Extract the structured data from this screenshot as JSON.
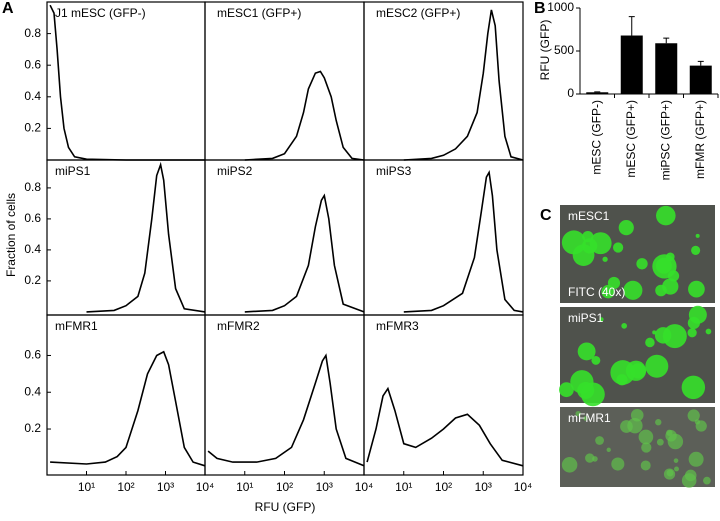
{
  "panel_labels": [
    "A",
    "B",
    "C"
  ],
  "panel_a": {
    "xlabel": "RFU (GFP)",
    "ylabel": "Fraction of cells"
  },
  "panel_c": {
    "images": [
      {
        "label": "mESC1",
        "note": "FITC (40x)"
      },
      {
        "label": "miPS1"
      },
      {
        "label": "mFMR1"
      }
    ]
  },
  "chart_data": [
    {
      "type": "line",
      "title": "J1 mESC (GFP-)",
      "xscale": "log",
      "xlim": [
        1,
        10000
      ],
      "ylim": [
        0,
        1
      ],
      "yticks": [
        0.2,
        0.4,
        0.6,
        0.8
      ],
      "color": "#000000",
      "x": [
        1.2,
        1.5,
        1.8,
        2.2,
        2.7,
        3.5,
        5,
        10,
        100,
        1000,
        10000
      ],
      "values": [
        0.98,
        0.93,
        0.7,
        0.4,
        0.2,
        0.08,
        0.02,
        0.005,
        0,
        0,
        0
      ]
    },
    {
      "type": "line",
      "title": "mESC1 (GFP+)",
      "xscale": "log",
      "xlim": [
        1,
        10000
      ],
      "ylim": [
        0,
        1
      ],
      "color": "#000000",
      "x": [
        10,
        50,
        100,
        200,
        300,
        400,
        600,
        800,
        1000,
        1500,
        2000,
        3000,
        5000,
        10000
      ],
      "values": [
        0,
        0.01,
        0.04,
        0.15,
        0.3,
        0.45,
        0.55,
        0.56,
        0.52,
        0.4,
        0.25,
        0.08,
        0.01,
        0
      ]
    },
    {
      "type": "line",
      "title": "mESC2 (GFP+)",
      "xscale": "log",
      "xlim": [
        1,
        10000
      ],
      "ylim": [
        0,
        1
      ],
      "color": "#000000",
      "x": [
        10,
        50,
        100,
        200,
        400,
        700,
        1000,
        1300,
        1600,
        2000,
        2500,
        3500,
        5000,
        10000
      ],
      "values": [
        0,
        0.01,
        0.03,
        0.07,
        0.15,
        0.3,
        0.55,
        0.8,
        0.95,
        0.85,
        0.5,
        0.15,
        0.02,
        0
      ]
    },
    {
      "type": "line",
      "title": "miPS1",
      "xscale": "log",
      "xlim": [
        1,
        10000
      ],
      "ylim": [
        -0.02,
        0.98
      ],
      "yticks": [
        0.2,
        0.4,
        0.6,
        0.8
      ],
      "color": "#000000",
      "x": [
        10,
        50,
        100,
        200,
        300,
        450,
        600,
        750,
        900,
        1200,
        1800,
        3000,
        10000
      ],
      "values": [
        0,
        0.01,
        0.04,
        0.1,
        0.25,
        0.6,
        0.88,
        0.95,
        0.85,
        0.5,
        0.15,
        0.02,
        0
      ]
    },
    {
      "type": "line",
      "title": "miPS2",
      "xscale": "log",
      "xlim": [
        1,
        10000
      ],
      "ylim": [
        -0.02,
        0.98
      ],
      "color": "#000000",
      "x": [
        10,
        50,
        100,
        200,
        400,
        600,
        850,
        1000,
        1300,
        1800,
        3000,
        10000
      ],
      "values": [
        0,
        0.01,
        0.04,
        0.1,
        0.3,
        0.55,
        0.72,
        0.75,
        0.6,
        0.3,
        0.05,
        0
      ]
    },
    {
      "type": "line",
      "title": "miPS3",
      "xscale": "log",
      "xlim": [
        1,
        10000
      ],
      "ylim": [
        -0.02,
        0.98
      ],
      "color": "#000000",
      "x": [
        10,
        50,
        100,
        300,
        600,
        900,
        1200,
        1400,
        1700,
        2200,
        3500,
        6000,
        10000
      ],
      "values": [
        0,
        0.01,
        0.04,
        0.12,
        0.35,
        0.65,
        0.87,
        0.9,
        0.75,
        0.4,
        0.08,
        0.01,
        0
      ]
    },
    {
      "type": "line",
      "title": "mFMR1",
      "xscale": "log",
      "xlim": [
        1,
        10000
      ],
      "ylim": [
        -0.05,
        0.82
      ],
      "yticks": [
        0.2,
        0.4,
        0.6
      ],
      "xticks": [
        {
          "value": 10,
          "label": "10¹"
        },
        {
          "value": 100,
          "label": "10²"
        },
        {
          "value": 1000,
          "label": "10³"
        },
        {
          "value": 10000,
          "label": "10⁴"
        }
      ],
      "color": "#000000",
      "x": [
        1.2,
        10,
        30,
        60,
        100,
        200,
        350,
        600,
        900,
        1200,
        1800,
        3000,
        5000,
        10000
      ],
      "values": [
        0.02,
        0.01,
        0.02,
        0.05,
        0.1,
        0.3,
        0.5,
        0.6,
        0.62,
        0.55,
        0.35,
        0.1,
        0.02,
        0
      ]
    },
    {
      "type": "line",
      "title": "mFMR2",
      "xscale": "log",
      "xlim": [
        1,
        10000
      ],
      "ylim": [
        -0.05,
        0.82
      ],
      "xticks": [
        {
          "value": 10,
          "label": "10¹"
        },
        {
          "value": 100,
          "label": "10²"
        },
        {
          "value": 1000,
          "label": "10³"
        },
        {
          "value": 10000,
          "label": "10⁴"
        }
      ],
      "color": "#000000",
      "x": [
        1.2,
        2,
        5,
        20,
        60,
        150,
        300,
        600,
        900,
        1100,
        1400,
        2000,
        3500,
        10000
      ],
      "values": [
        0.08,
        0.04,
        0.02,
        0.02,
        0.04,
        0.1,
        0.25,
        0.45,
        0.57,
        0.6,
        0.45,
        0.2,
        0.04,
        0
      ]
    },
    {
      "type": "line",
      "title": "mFMR3",
      "xscale": "log",
      "xlim": [
        1,
        10000
      ],
      "ylim": [
        -0.05,
        0.82
      ],
      "xticks": [
        {
          "value": 10,
          "label": "10¹"
        },
        {
          "value": 100,
          "label": "10²"
        },
        {
          "value": 1000,
          "label": "10³"
        },
        {
          "value": 10000,
          "label": "10⁴"
        }
      ],
      "color": "#000000",
      "x": [
        1.2,
        2,
        3,
        4,
        6,
        10,
        20,
        50,
        100,
        200,
        400,
        800,
        1500,
        3000,
        10000
      ],
      "values": [
        0.02,
        0.2,
        0.38,
        0.42,
        0.3,
        0.12,
        0.1,
        0.15,
        0.2,
        0.26,
        0.28,
        0.22,
        0.12,
        0.03,
        0
      ]
    },
    {
      "type": "bar",
      "ylabel": "RFU (GFP)",
      "categories": [
        "mESC (GFP-)",
        "mESC (GFP+)",
        "miPSC (GFP+)",
        "mFMR (GFP+)"
      ],
      "values": [
        20,
        680,
        590,
        330
      ],
      "errors": [
        5,
        220,
        60,
        50
      ],
      "color": "#000000",
      "ylim": [
        0,
        1000
      ],
      "yticks": [
        0,
        500,
        1000
      ]
    }
  ]
}
